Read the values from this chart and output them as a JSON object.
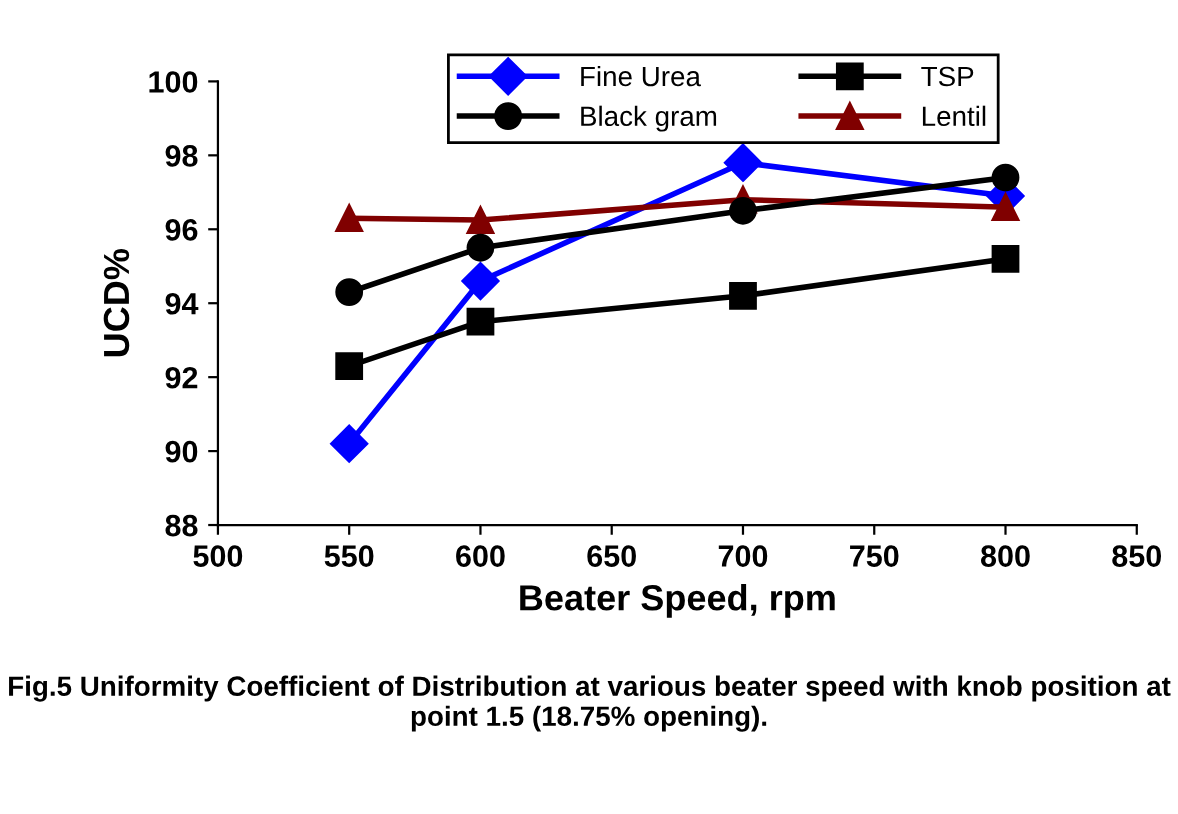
{
  "chart_data": {
    "type": "line",
    "xlabel": "Beater Speed, rpm",
    "ylabel": "UCD%",
    "x": [
      550,
      600,
      700,
      800
    ],
    "series": [
      {
        "name": "Fine Urea",
        "color": "#0000ff",
        "marker": "diamond",
        "values": [
          90.2,
          94.6,
          97.8,
          96.9
        ]
      },
      {
        "name": "TSP",
        "color": "#000000",
        "marker": "square",
        "values": [
          92.3,
          93.5,
          94.2,
          95.2
        ]
      },
      {
        "name": "Black gram",
        "color": "#000000",
        "marker": "circle",
        "values": [
          94.3,
          95.5,
          96.5,
          97.4
        ]
      },
      {
        "name": "Lentil",
        "color": "#800000",
        "marker": "triangle",
        "values": [
          96.3,
          96.25,
          96.8,
          96.6
        ]
      }
    ],
    "xlim": [
      500,
      850
    ],
    "xticks": [
      500,
      550,
      600,
      650,
      700,
      750,
      800,
      850
    ],
    "ylim": [
      88,
      100
    ],
    "yticks": [
      88,
      90,
      92,
      94,
      96,
      98,
      100
    ],
    "grid": false,
    "legend": "top",
    "line_style": "solid",
    "annotations": [
      "Fig.5 Uniformity Coefficient of Distribution at various beater speed with knob position at point 1.5 (18.75% opening)."
    ]
  }
}
